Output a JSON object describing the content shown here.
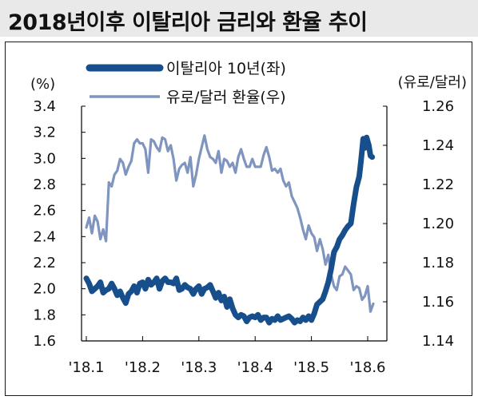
{
  "title": "2018년이후 이탈리아 금리와 환율 추이",
  "chart_data": {
    "type": "line",
    "title": "2018년이후 이탈리아 금리와 환율 추이",
    "left_axis": {
      "unit": "(%)",
      "ylim": [
        1.6,
        3.4
      ],
      "ticks": [
        "3.4",
        "3.2",
        "3.0",
        "2.8",
        "2.6",
        "2.4",
        "2.2",
        "2.0",
        "1.8",
        "1.6"
      ]
    },
    "right_axis": {
      "unit": "(유로/달러)",
      "ylim": [
        1.14,
        1.26
      ],
      "ticks": [
        "1.26",
        "1.24",
        "1.22",
        "1.20",
        "1.18",
        "1.16",
        "1.14"
      ]
    },
    "x_ticks": [
      "'18.1",
      "'18.2",
      "'18.3",
      "'18.4",
      "'18.5",
      "'18.6"
    ],
    "legend_position": "top",
    "series": [
      {
        "name": "이탈리아 10년(좌)",
        "axis": "left",
        "color": "#174f8c",
        "x": [
          0.0,
          0.05,
          0.1,
          0.15,
          0.2,
          0.25,
          0.3,
          0.35,
          0.4,
          0.45,
          0.5,
          0.55,
          0.6,
          0.65,
          0.7,
          0.75,
          0.8,
          0.85,
          0.9,
          0.95,
          1.0,
          1.05,
          1.1,
          1.15,
          1.2,
          1.25,
          1.3,
          1.35,
          1.4,
          1.45,
          1.5,
          1.55,
          1.6,
          1.65,
          1.7,
          1.75,
          1.8,
          1.85,
          1.9,
          1.95,
          2.0,
          2.05,
          2.1,
          2.15,
          2.2,
          2.25,
          2.3,
          2.35,
          2.4,
          2.45,
          2.5,
          2.55,
          2.6,
          2.65,
          2.7,
          2.75,
          2.8,
          2.85,
          2.9,
          2.95,
          3.0,
          3.05,
          3.1,
          3.15,
          3.2,
          3.25,
          3.3,
          3.35,
          3.4,
          3.45,
          3.5,
          3.55,
          3.6,
          3.65,
          3.7,
          3.75,
          3.8,
          3.85,
          3.9,
          3.95,
          4.0,
          4.05,
          4.1,
          4.15,
          4.2,
          4.25,
          4.3,
          4.35,
          4.4,
          4.45,
          4.5,
          4.55,
          4.6,
          4.65,
          4.7,
          4.75,
          4.8,
          4.85,
          4.88,
          4.92,
          4.95,
          4.98,
          5.02,
          5.05,
          5.08
        ],
        "values": [
          2.08,
          2.04,
          1.98,
          2.0,
          2.02,
          2.05,
          1.97,
          1.99,
          2.0,
          2.04,
          2.0,
          1.95,
          1.98,
          1.93,
          1.89,
          1.96,
          1.98,
          2.02,
          1.97,
          2.04,
          2.05,
          2.0,
          2.07,
          2.03,
          2.05,
          2.08,
          2.0,
          2.06,
          2.08,
          2.05,
          2.05,
          2.04,
          2.08,
          1.99,
          2.0,
          2.03,
          2.01,
          2.0,
          1.96,
          2.0,
          2.02,
          1.96,
          2.0,
          2.01,
          2.03,
          1.98,
          1.93,
          1.97,
          1.91,
          1.94,
          1.86,
          1.92,
          1.85,
          1.8,
          1.78,
          1.8,
          1.79,
          1.75,
          1.78,
          1.79,
          1.78,
          1.8,
          1.76,
          1.78,
          1.78,
          1.74,
          1.77,
          1.76,
          1.79,
          1.76,
          1.77,
          1.78,
          1.79,
          1.77,
          1.74,
          1.76,
          1.75,
          1.78,
          1.76,
          1.79,
          1.76,
          1.81,
          1.88,
          1.9,
          1.92,
          1.98,
          2.05,
          2.15,
          2.28,
          2.32,
          2.38,
          2.41,
          2.45,
          2.48,
          2.5,
          2.65,
          2.78,
          2.86,
          2.98,
          3.15,
          3.08,
          3.16,
          3.1,
          3.02,
          3.01
        ]
      },
      {
        "name": "유로/달러 환율(우)",
        "axis": "right",
        "color": "#7f95bf",
        "x": [
          0.0,
          0.05,
          0.1,
          0.15,
          0.2,
          0.25,
          0.3,
          0.35,
          0.4,
          0.45,
          0.5,
          0.55,
          0.6,
          0.65,
          0.7,
          0.75,
          0.8,
          0.85,
          0.9,
          0.95,
          1.0,
          1.05,
          1.1,
          1.15,
          1.2,
          1.25,
          1.3,
          1.35,
          1.4,
          1.45,
          1.5,
          1.55,
          1.6,
          1.65,
          1.7,
          1.75,
          1.8,
          1.85,
          1.9,
          1.95,
          2.0,
          2.05,
          2.1,
          2.15,
          2.2,
          2.25,
          2.3,
          2.35,
          2.4,
          2.45,
          2.5,
          2.55,
          2.6,
          2.65,
          2.7,
          2.75,
          2.8,
          2.85,
          2.9,
          2.95,
          3.0,
          3.05,
          3.1,
          3.15,
          3.2,
          3.25,
          3.3,
          3.35,
          3.4,
          3.45,
          3.5,
          3.55,
          3.6,
          3.65,
          3.7,
          3.75,
          3.8,
          3.85,
          3.9,
          3.95,
          4.0,
          4.05,
          4.1,
          4.15,
          4.2,
          4.25,
          4.3,
          4.35,
          4.4,
          4.45,
          4.5,
          4.55,
          4.6,
          4.65,
          4.7,
          4.75,
          4.8,
          4.85,
          4.9,
          4.95,
          5.0,
          5.05,
          5.1
        ],
        "values": [
          1.198,
          1.203,
          1.195,
          1.204,
          1.201,
          1.192,
          1.197,
          1.191,
          1.221,
          1.219,
          1.225,
          1.227,
          1.233,
          1.231,
          1.225,
          1.229,
          1.232,
          1.241,
          1.243,
          1.241,
          1.241,
          1.238,
          1.226,
          1.243,
          1.242,
          1.239,
          1.237,
          1.244,
          1.243,
          1.237,
          1.24,
          1.233,
          1.222,
          1.228,
          1.23,
          1.231,
          1.226,
          1.234,
          1.219,
          1.225,
          1.233,
          1.239,
          1.245,
          1.238,
          1.234,
          1.233,
          1.231,
          1.237,
          1.226,
          1.233,
          1.232,
          1.229,
          1.231,
          1.226,
          1.234,
          1.238,
          1.233,
          1.229,
          1.229,
          1.233,
          1.229,
          1.229,
          1.229,
          1.235,
          1.239,
          1.234,
          1.227,
          1.228,
          1.226,
          1.228,
          1.222,
          1.219,
          1.221,
          1.214,
          1.211,
          1.208,
          1.203,
          1.197,
          1.192,
          1.199,
          1.195,
          1.193,
          1.186,
          1.192,
          1.187,
          1.179,
          1.184,
          1.174,
          1.168,
          1.166,
          1.173,
          1.174,
          1.178,
          1.176,
          1.174,
          1.166,
          1.168,
          1.167,
          1.161,
          1.163,
          1.168,
          1.155,
          1.159
        ]
      }
    ],
    "grid": false
  }
}
